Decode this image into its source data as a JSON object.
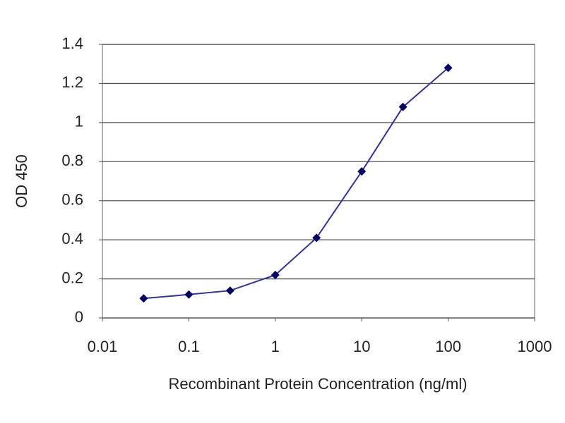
{
  "chart_data": {
    "type": "line",
    "xlabel": "Recombinant Protein Concentration (ng/ml)",
    "ylabel": "OD 450",
    "x": [
      0.03,
      0.1,
      0.3,
      1,
      3,
      10,
      30,
      100
    ],
    "values": [
      0.1,
      0.12,
      0.14,
      0.22,
      0.41,
      0.75,
      1.08,
      1.28
    ],
    "color": "#333399",
    "marker_color": "#000066",
    "xscale": "log",
    "xlim": [
      0.01,
      1000
    ],
    "xticks": [
      0.01,
      0.1,
      1,
      10,
      100,
      1000
    ],
    "ylim": [
      0,
      1.4
    ],
    "yticks": [
      0,
      0.2,
      0.4,
      0.6,
      0.8,
      1,
      1.2,
      1.4
    ],
    "grid": true
  }
}
